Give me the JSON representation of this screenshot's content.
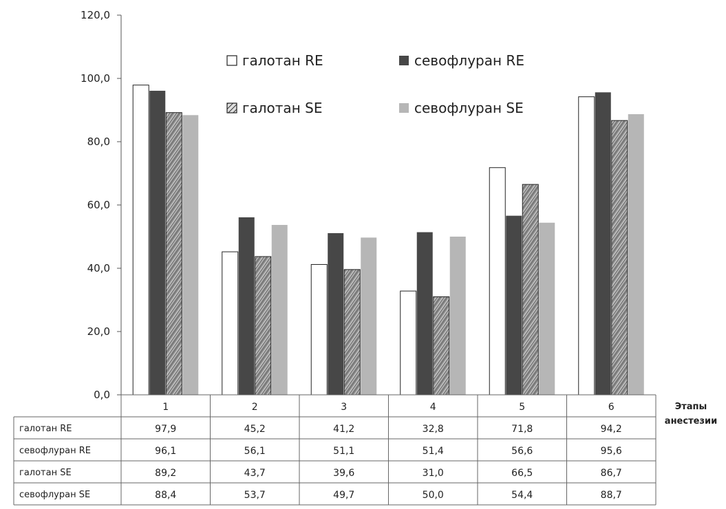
{
  "chart_data": {
    "type": "bar",
    "categories": [
      "1",
      "2",
      "3",
      "4",
      "5",
      "6"
    ],
    "xlabel": "Этапы анестезии",
    "xlabel_lines": [
      "Этапы",
      "анестезии"
    ],
    "ylabel": "",
    "ylim": [
      0,
      120
    ],
    "yticks": [
      "0,0",
      "20,0",
      "40,0",
      "60,0",
      "80,0",
      "100,0",
      "120,0"
    ],
    "legend_placement": "top",
    "grid": false,
    "series": [
      {
        "name": "галотан RE",
        "values": [
          97.9,
          45.2,
          41.2,
          32.8,
          71.8,
          94.2
        ],
        "labels": [
          "97,9",
          "45,2",
          "41,2",
          "32,8",
          "71,8",
          "94,2"
        ],
        "fill": "#ffffff",
        "style": "white"
      },
      {
        "name": "севофлуран RE",
        "values": [
          96.1,
          56.1,
          51.1,
          51.4,
          56.6,
          95.6
        ],
        "labels": [
          "96,1",
          "56,1",
          "51,1",
          "51,4",
          "56,6",
          "95,6"
        ],
        "fill": "#4a4a4a",
        "style": "dark"
      },
      {
        "name": "галотан SE",
        "values": [
          89.2,
          43.7,
          39.6,
          31.0,
          66.5,
          86.7
        ],
        "labels": [
          "89,2",
          "43,7",
          "39,6",
          "31,0",
          "66,5",
          "86,7"
        ],
        "fill": "#9a9a9a",
        "style": "hatched"
      },
      {
        "name": "севофлуран SE",
        "values": [
          88.4,
          53.7,
          49.7,
          50.0,
          54.4,
          88.7
        ],
        "labels": [
          "88,4",
          "53,7",
          "49,7",
          "50,0",
          "54,4",
          "88,7"
        ],
        "fill": "#b4b4b4",
        "style": "light"
      }
    ]
  }
}
